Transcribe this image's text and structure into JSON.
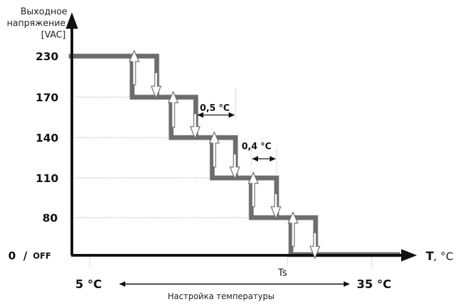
{
  "y_axis": {
    "title_lines": [
      "Выходное",
      "напряжение",
      "[VAC]"
    ],
    "levels": [
      "230",
      "170",
      "140",
      "110",
      "80"
    ],
    "zero_label": "0",
    "slash": "/",
    "off_label": "OFF"
  },
  "x_axis": {
    "label": "T",
    "unit": ", °C",
    "ts_label": "Ts"
  },
  "hysteresis": {
    "wide": "0,5 °C",
    "narrow": "0,4 °C"
  },
  "range": {
    "min": "5 °C",
    "max": "35 °C",
    "caption": "Настройка температуры"
  },
  "colors": {
    "curve": "#6d6d6d",
    "axis": "#111111",
    "arrow_fill": "#ffffff",
    "arrow_stroke": "#6d6d6d"
  }
}
